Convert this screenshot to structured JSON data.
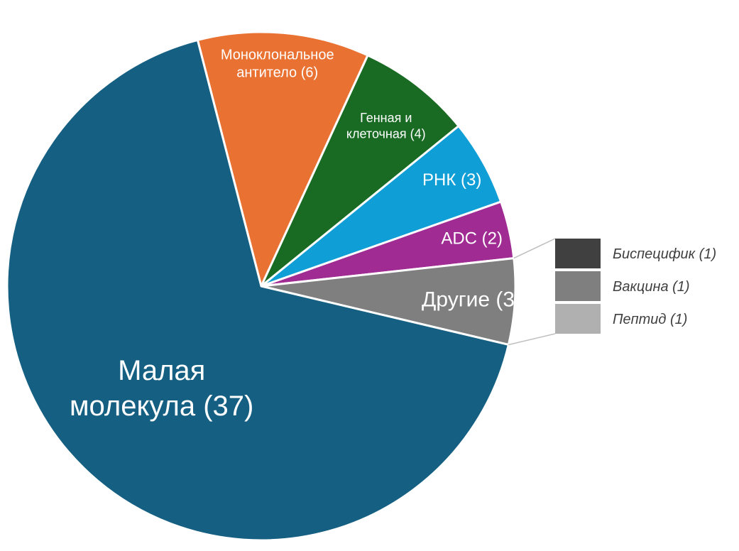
{
  "chart_data": {
    "type": "pie",
    "slices": [
      {
        "label": [
          "Моноклональное",
          "антитело (6)"
        ],
        "value": 6,
        "color": "#E97132"
      },
      {
        "label": [
          "Генная и",
          "клеточная (4)"
        ],
        "value": 4,
        "color": "#196B24"
      },
      {
        "label": [
          "РНК (3)"
        ],
        "value": 3,
        "color": "#0F9ED5"
      },
      {
        "label": [
          "ADC (2)"
        ],
        "value": 2,
        "color": "#A02B93"
      },
      {
        "label": [
          "Другие (3)"
        ],
        "value": 3,
        "color": "#7F7F7F"
      },
      {
        "label": [
          "Малая",
          "молекула (37)"
        ],
        "value": 37,
        "color": "#156082"
      }
    ],
    "breakout": {
      "of": "Другие (3)",
      "items": [
        {
          "label": "Биспецифик (1)",
          "value": 1,
          "color": "#404040"
        },
        {
          "label": "Вакцина (1)",
          "value": 1,
          "color": "#7F7F7F"
        },
        {
          "label": "Пептид (1)",
          "value": 1,
          "color": "#B0B0B0"
        }
      ]
    }
  }
}
